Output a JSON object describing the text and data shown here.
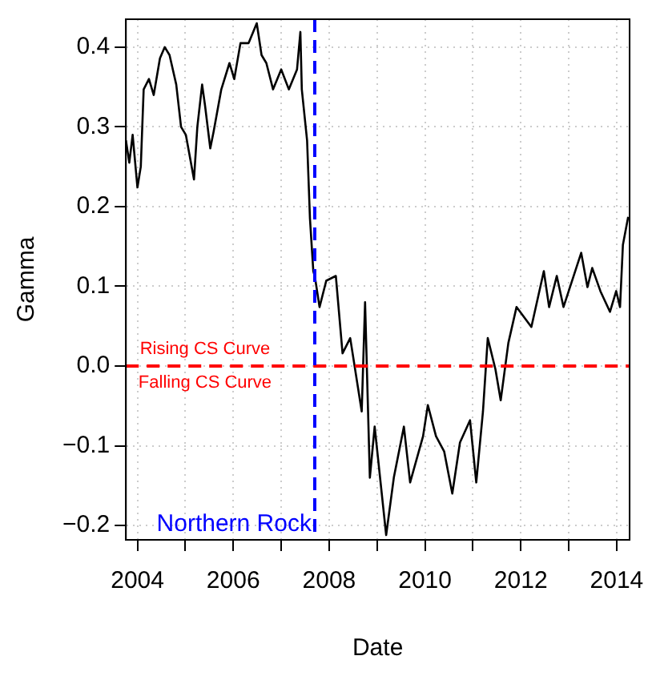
{
  "chart_data": {
    "type": "line",
    "xlabel": "Date",
    "ylabel": "Gamma",
    "xlim": [
      2003.76,
      2014.27
    ],
    "ylim": [
      -0.218,
      0.435
    ],
    "xticks": [
      2004,
      {
        "value": 2005,
        "label": null
      },
      2006,
      {
        "value": 2007,
        "label": null
      },
      2008,
      {
        "value": 2009,
        "label": null
      },
      2010,
      {
        "value": 2011,
        "label": null
      },
      2012,
      {
        "value": 2013,
        "label": null
      },
      2014
    ],
    "yticks": [
      -0.2,
      -0.1,
      {
        "value": 0,
        "label": "0.0"
      },
      0.1,
      0.2,
      0.3,
      0.4
    ],
    "grid": true,
    "legend": false,
    "marker": "none",
    "line_style": "solid",
    "series": [
      {
        "color": "#000000",
        "x": [
          2003.76,
          2003.83,
          2003.9,
          2004.0,
          2004.07,
          2004.13,
          2004.24,
          2004.34,
          2004.47,
          2004.57,
          2004.67,
          2004.81,
          2004.91,
          2005.01,
          2005.18,
          2005.25,
          2005.35,
          2005.41,
          2005.52,
          2005.59,
          2005.75,
          2005.92,
          2006.02,
          2006.15,
          2006.32,
          2006.49,
          2006.59,
          2006.69,
          2006.83,
          2007.0,
          2007.16,
          2007.33,
          2007.4,
          2007.43,
          2007.54,
          2007.6,
          2007.67,
          2007.7,
          2007.8,
          2007.94,
          2008.14,
          2008.28,
          2008.44,
          2008.68,
          2008.75,
          2008.85,
          2008.95,
          2009.19,
          2009.35,
          2009.56,
          2009.69,
          2009.96,
          2010.06,
          2010.23,
          2010.4,
          2010.57,
          2010.73,
          2010.94,
          2011.07,
          2011.21,
          2011.31,
          2011.47,
          2011.58,
          2011.74,
          2011.91,
          2012.22,
          2012.48,
          2012.59,
          2012.75,
          2012.89,
          2013.26,
          2013.39,
          2013.49,
          2013.66,
          2013.86,
          2013.99,
          2014.07,
          2014.13,
          2014.24
        ],
        "values": [
          0.283,
          0.255,
          0.29,
          0.224,
          0.25,
          0.347,
          0.36,
          0.34,
          0.386,
          0.4,
          0.39,
          0.353,
          0.3,
          0.29,
          0.234,
          0.3,
          0.353,
          0.327,
          0.273,
          0.294,
          0.347,
          0.38,
          0.36,
          0.405,
          0.405,
          0.43,
          0.39,
          0.38,
          0.347,
          0.372,
          0.347,
          0.372,
          0.419,
          0.347,
          0.283,
          0.185,
          0.119,
          0.113,
          0.074,
          0.107,
          0.113,
          0.016,
          0.035,
          -0.057,
          0.08,
          -0.14,
          -0.076,
          -0.212,
          -0.14,
          -0.076,
          -0.146,
          -0.088,
          -0.049,
          -0.088,
          -0.107,
          -0.16,
          -0.096,
          -0.068,
          -0.146,
          -0.057,
          0.035,
          -0.004,
          -0.043,
          0.029,
          0.074,
          0.049,
          0.119,
          0.074,
          0.113,
          0.074,
          0.142,
          0.099,
          0.123,
          0.094,
          0.068,
          0.094,
          0.074,
          0.152,
          0.187
        ]
      }
    ],
    "ref_lines": [
      {
        "axis": "y",
        "value": 0,
        "color": "#ff0000",
        "line_style": "dashed"
      },
      {
        "axis": "x",
        "value": 2007.7,
        "label": "Northern Rock",
        "color": "#0000ff",
        "line_style": "dashed"
      }
    ],
    "annotations": [
      {
        "text": "Rising CS Curve",
        "x": 2005.41,
        "y": 0.01
      },
      {
        "text": "Falling CS Curve",
        "x": 2005.41,
        "y": -0.01
      }
    ]
  }
}
